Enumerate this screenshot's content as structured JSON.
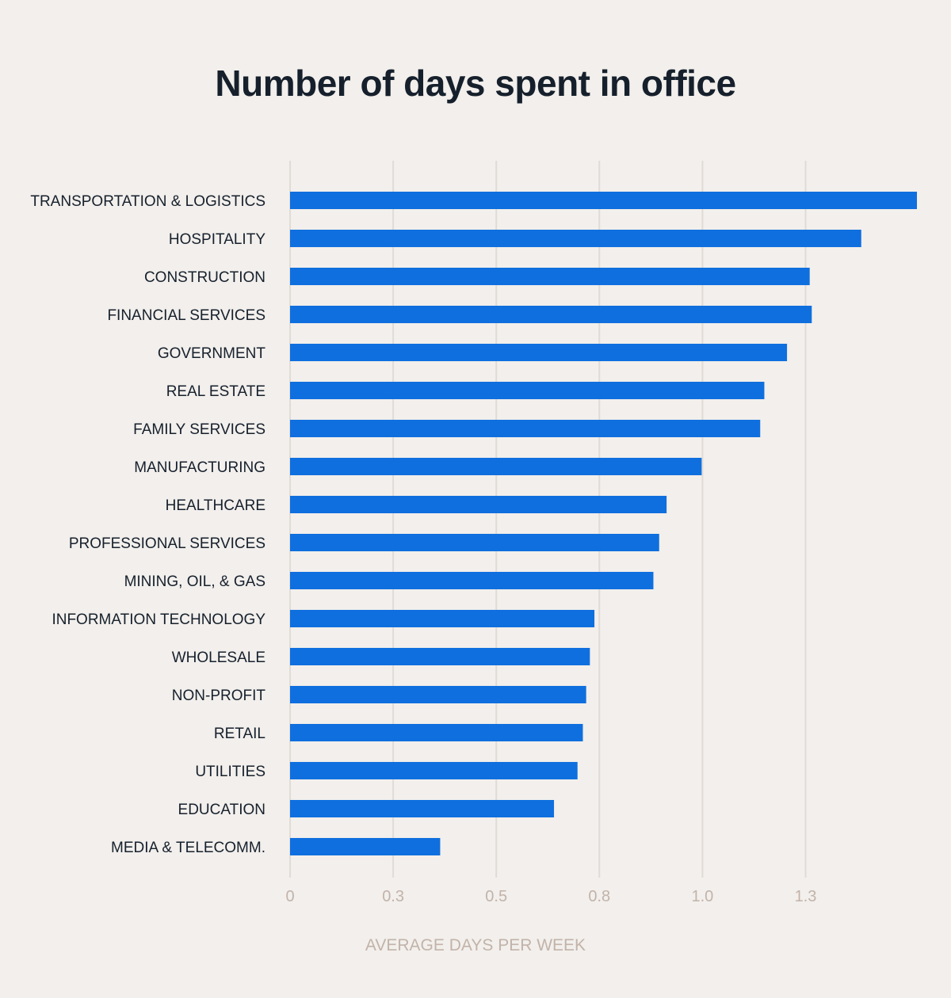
{
  "chart_data": {
    "type": "bar",
    "orientation": "horizontal",
    "title": "Number of days spent in office",
    "xlabel": "AVERAGE DAYS PER WEEK",
    "ylabel": "",
    "categories": [
      "TRANSPORTATION & LOGISTICS",
      "HOSPITALITY",
      "CONSTRUCTION",
      "FINANCIAL SERVICES",
      "GOVERNMENT",
      "REAL ESTATE",
      "FAMILY SERVICES",
      "MANUFACTURING",
      "HEALTHCARE",
      "PROFESSIONAL SERVICES",
      "MINING, OIL, & GAS",
      "INFORMATION TECHNOLOGY",
      "WHOLESALE",
      "NON-PROFIT",
      "RETAIL",
      "UTILITIES",
      "EDUCATION",
      "MEDIA & TELECOMM."
    ],
    "values": [
      1.52,
      1.385,
      1.26,
      1.265,
      1.205,
      1.15,
      1.14,
      0.998,
      0.913,
      0.895,
      0.881,
      0.738,
      0.727,
      0.718,
      0.71,
      0.697,
      0.64,
      0.364
    ],
    "ticks": [
      0,
      0.25,
      0.5,
      0.75,
      1.0,
      1.25
    ],
    "tick_labels": [
      "0",
      "0.3",
      "0.5",
      "0.8",
      "1.0",
      "1.3"
    ],
    "xlim": [
      0,
      1.52
    ],
    "grid": true,
    "bar_color": "#0f6fde",
    "grid_color": "#e0dbd6"
  }
}
